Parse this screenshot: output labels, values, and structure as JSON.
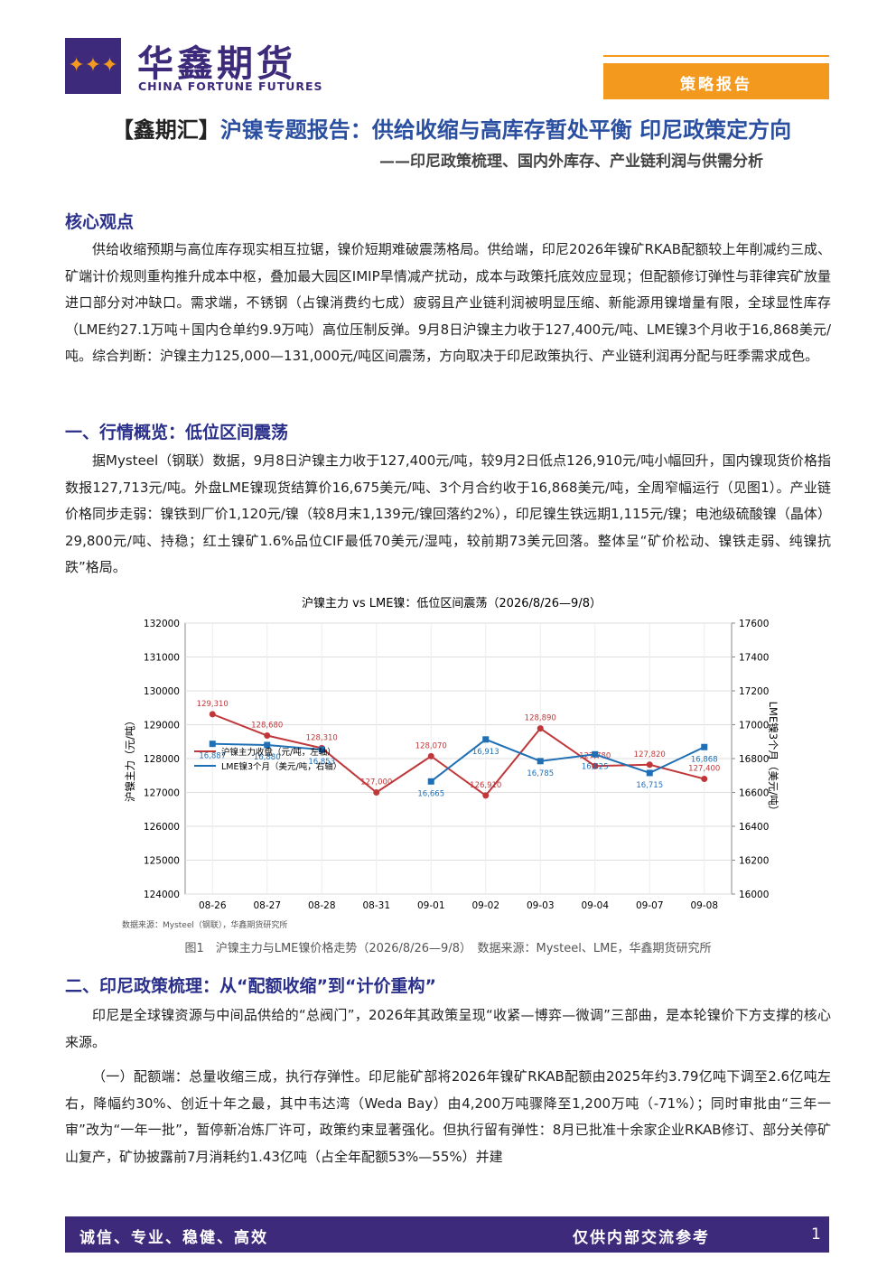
{
  "header": {
    "brand": "华鑫期货",
    "brand_en": "CHINA FORTUNE FUTURES",
    "tag": "策略报告"
  },
  "title_prefix": "【鑫期汇】",
  "title": "沪镍专题报告：供给收缩与高库存暂处平衡 印尼政策定方向",
  "subtitle": "——印尼政策梳理、国内外库存、产业链利润与供需分析",
  "sections": [
    {
      "heading": "核心观点",
      "paragraphs": [
        "供给收缩预期与高位库存现实相互拉锯，镍价短期难破震荡格局。供给端，印尼2026年镍矿RKAB配额较上年削减约三成、矿端计价规则重构推升成本中枢，叠加最大园区IMIP旱情减产扰动，成本与政策托底效应显现；但配额修订弹性与菲律宾矿放量进口部分对冲缺口。需求端，不锈钢（占镍消费约七成）疲弱且产业链利润被明显压缩、新能源用镍增量有限，全球显性库存（LME约27.1万吨＋国内仓单约9.9万吨）高位压制反弹。9月8日沪镍主力收于127,400元/吨、LME镍3个月收于16,868美元/吨。综合判断：沪镍主力125,000—131,000元/吨区间震荡，方向取决于印尼政策执行、产业链利润再分配与旺季需求成色。"
      ]
    },
    {
      "heading": "一、行情概览：低位区间震荡",
      "paragraphs": [
        "据Mysteel（钢联）数据，9月8日沪镍主力收于127,400元/吨，较9月2日低点126,910元/吨小幅回升，国内镍现货价格指数报127,713元/吨。外盘LME镍现货结算价16,675美元/吨、3个月合约收于16,868美元/吨，全周窄幅运行（见图1）。产业链价格同步走弱：镍铁到厂价1,120元/镍（较8月末1,139元/镍回落约2%），印尼镍生铁远期1,115元/镍；电池级硫酸镍（晶体）29,800元/吨、持稳；红土镍矿1.6%品位CIF最低70美元/湿吨，较前期73美元回落。整体呈“矿价松动、镍铁走弱、纯镍抗跌”格局。"
      ]
    },
    {
      "heading": "二、印尼政策梳理：从“配额收缩”到“计价重构”",
      "paragraphs": [
        "印尼是全球镍资源与中间品供给的“总阀门”，2026年其政策呈现“收紧—博弈—微调”三部曲，是本轮镍价下方支撑的核心来源。",
        "（一）配额端：总量收缩三成，执行存弹性。印尼能矿部将2026年镍矿RKAB配额由2025年约3.79亿吨下调至2.6亿吨左右，降幅约30%、创近十年之最，其中韦达湾（Weda Bay）由4,200万吨骤降至1,200万吨（-71%）；同时审批由“三年一审”改为“一年一批”，暂停新冶炼厂许可，政策约束显著强化。但执行留有弹性：8月已批准十余家企业RKAB修订、部分关停矿山复产，矿协披露前7月消耗约1.43亿吨（占全年配额53%—55%）并建"
      ]
    }
  ],
  "chart_data": {
    "type": "line",
    "title": "沪镍主力 vs LME镍：低位区间震荡（2026/8/26—9/8）",
    "categories": [
      "08-26",
      "08-27",
      "08-28",
      "08-31",
      "09-01",
      "09-02",
      "09-03",
      "09-04",
      "09-07",
      "09-08"
    ],
    "series": [
      {
        "name": "沪镍主力收盘（元/吨，左轴）",
        "color": "#c0373a",
        "values": [
          129310,
          128680,
          128310,
          127000,
          128070,
          126910,
          128890,
          127780,
          127820,
          127400
        ],
        "value_labels": [
          "129,310",
          "128,680",
          "128,310",
          "127,000",
          "128,070",
          "126,910",
          "128,890",
          "127,780",
          "127,820",
          "127,400"
        ]
      },
      {
        "name": "LME镍3个月（美元/吨，右轴）",
        "color": "#1f6fb5",
        "axis": "y2",
        "values": [
          16887,
          16880,
          16853,
          null,
          16665,
          16913,
          16785,
          16825,
          16715,
          16868
        ],
        "value_labels": [
          "16,887",
          "16,880",
          "16,853",
          null,
          "16,665",
          "16,913",
          "16,785",
          "16,825",
          "16,715",
          "16,868"
        ]
      }
    ],
    "ylabel": "沪镍主力（元/吨）",
    "y2label": "LME镍3个月（美元/吨）",
    "ylim": [
      124000,
      132000
    ],
    "yticks": [
      124000,
      125000,
      126000,
      127000,
      128000,
      129000,
      130000,
      131000,
      132000
    ],
    "y2lim": [
      16000,
      17600
    ],
    "y2ticks": [
      16000,
      16200,
      16400,
      16600,
      16800,
      17000,
      17200,
      17400,
      17600
    ],
    "grid": true,
    "legend": "upper left",
    "source": "数据来源：Mysteel（钢联），华鑫期货研究所"
  },
  "caption": "图1　沪镍主力与LME镍价格走势（2026/8/26—9/8）　数据来源：Mysteel、LME，华鑫期货研究所",
  "footer": {
    "motto": "诚信、专业、稳健、高效",
    "note": "仅供内部交流参考",
    "page": "1"
  }
}
